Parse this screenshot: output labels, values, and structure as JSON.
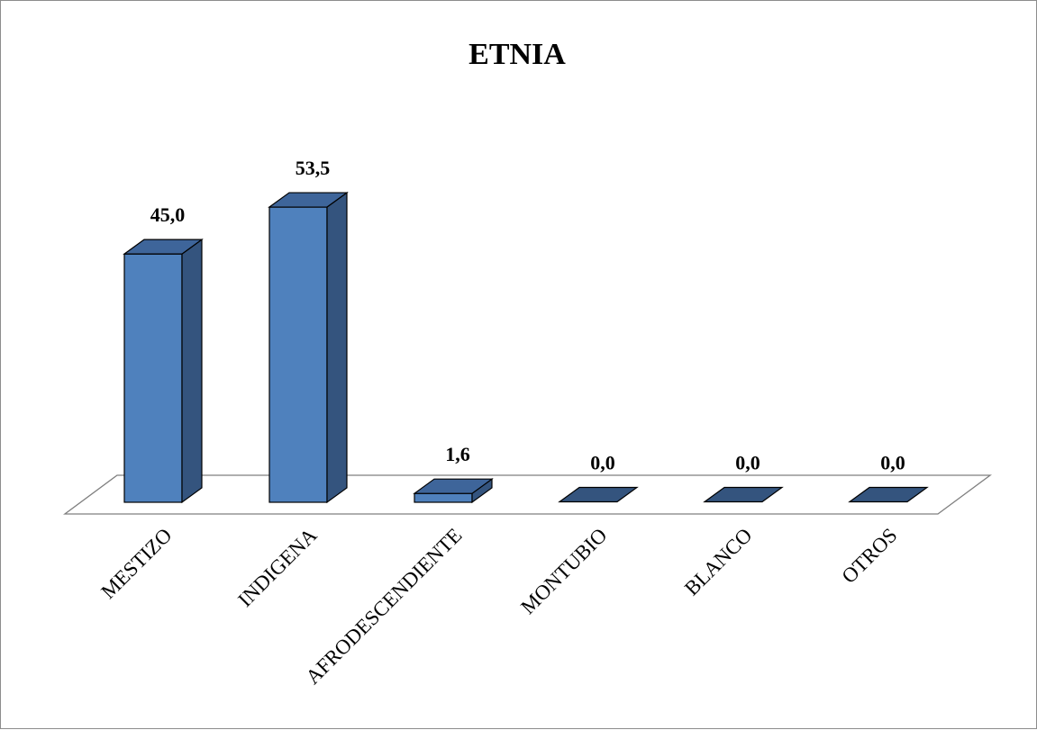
{
  "chart_data": {
    "type": "bar",
    "title": "ETNIA",
    "categories": [
      "MESTIZO",
      "INDIGENA",
      "AFRODESCENDIENTE",
      "MONTUBIO",
      "BLANCO",
      "OTROS"
    ],
    "values": [
      45.0,
      53.5,
      1.6,
      0.0,
      0.0,
      0.0
    ],
    "value_labels": [
      "45,0",
      "53,5",
      "1,6",
      "0,0",
      "0,0",
      "0,0"
    ],
    "ylim": [
      0,
      60
    ],
    "grid": false,
    "legend": "none",
    "style": "3d-column",
    "colors": {
      "bar_front": "#4f81bd",
      "bar_side": "#34547e",
      "bar_top": "#3e659a",
      "bar_outline": "#000000",
      "floor_outline": "#7f7f7f"
    }
  }
}
